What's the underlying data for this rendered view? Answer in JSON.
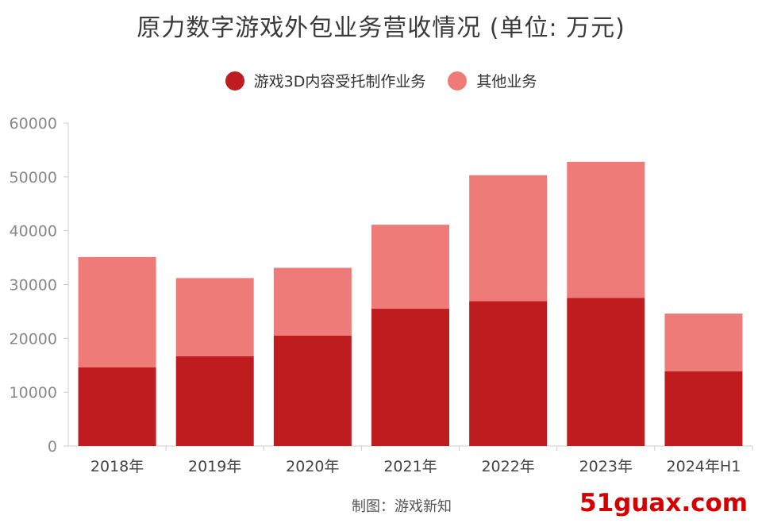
{
  "chart_data": {
    "type": "bar",
    "stacked": true,
    "title": "原力数字游戏外包业务营收情况 (单位: 万元)",
    "categories": [
      "2018年",
      "2019年",
      "2020年",
      "2021年",
      "2022年",
      "2023年",
      "2024年H1"
    ],
    "series": [
      {
        "name": "游戏3D内容受托制作业务",
        "color": "#be1c1f",
        "values": [
          14600,
          16700,
          20500,
          25500,
          26900,
          27500,
          13900
        ]
      },
      {
        "name": "其他业务",
        "color": "#ee7b78",
        "values": [
          20500,
          14500,
          12600,
          15600,
          23400,
          25300,
          10700
        ]
      }
    ],
    "yticks": [
      "0",
      "10000",
      "20000",
      "30000",
      "40000",
      "50000",
      "60000"
    ],
    "ylim": [
      0,
      60000
    ],
    "grid": false,
    "legend_position": "top-center"
  },
  "source_text": "制图：游戏新知",
  "watermark_text": "51guax.com"
}
